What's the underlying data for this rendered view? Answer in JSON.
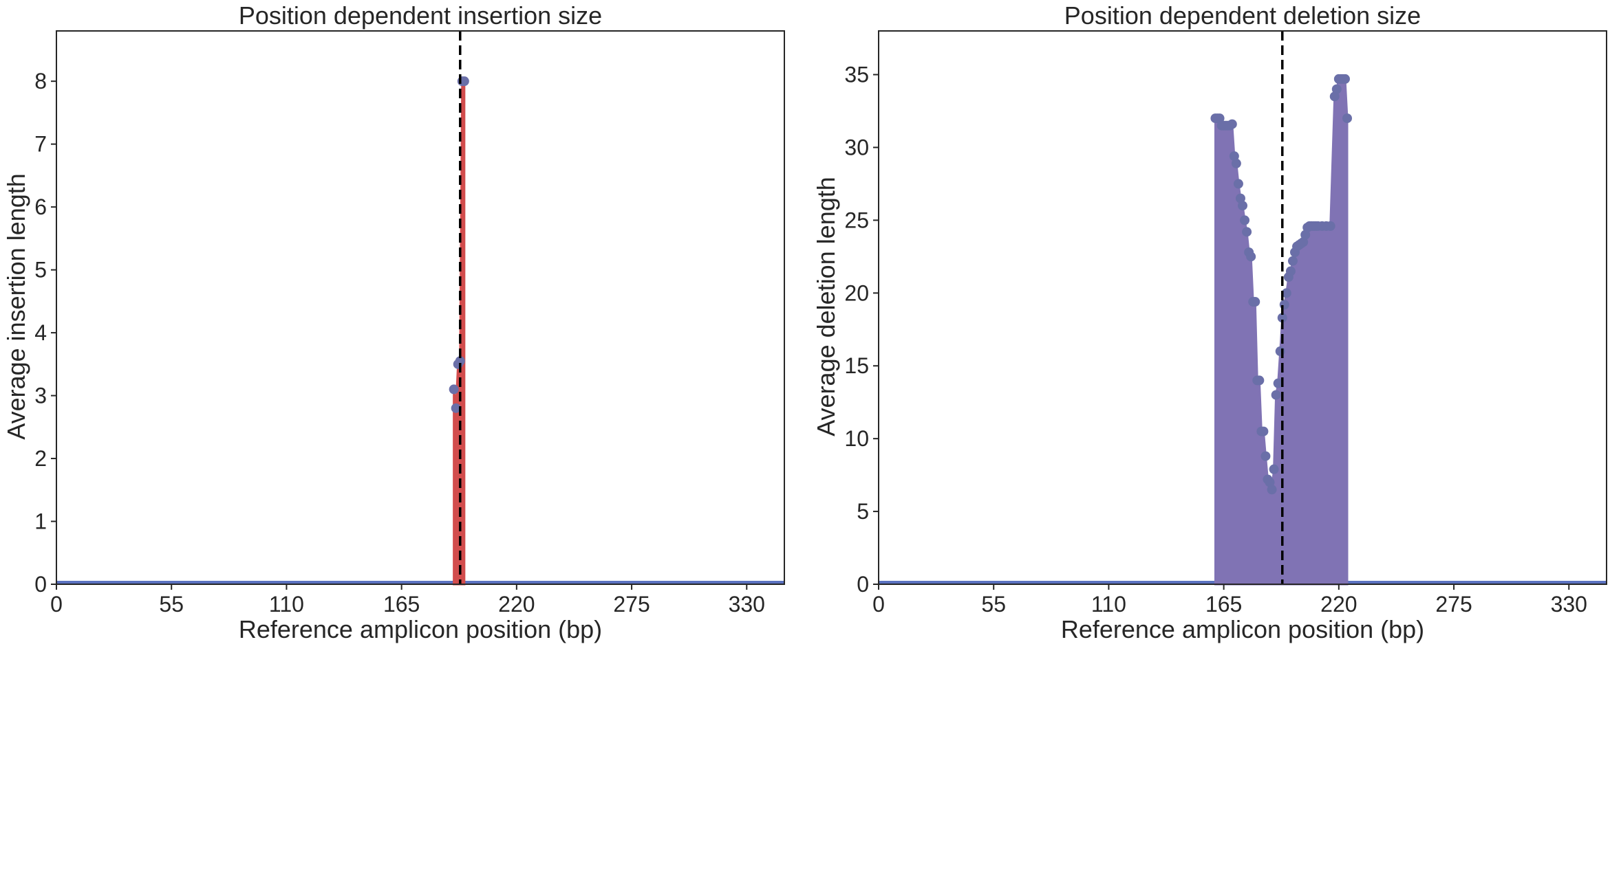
{
  "colors": {
    "insertion_fill": "#d24d4d",
    "deletion_fill": "#8073b4",
    "marker": "#6a6fa8",
    "baseline": "#5b72c0",
    "cut_line": "#000000",
    "axes": "#262626"
  },
  "chart_data": [
    {
      "type": "area",
      "title": "Position dependent insertion size",
      "xlabel": "Reference amplicon position (bp)",
      "ylabel": "Average insertion length",
      "xlim": [
        0,
        348
      ],
      "ylim": [
        0,
        8.8
      ],
      "xticks": [
        0,
        55,
        110,
        165,
        220,
        275,
        330
      ],
      "yticks": [
        0,
        1,
        2,
        3,
        4,
        5,
        6,
        7,
        8
      ],
      "cut_site": 193,
      "grid": false,
      "series": [
        {
          "points": [
            [
              190,
              0
            ],
            [
              190,
              3.1
            ],
            [
              191,
              2.8
            ],
            [
              192,
              3.5
            ],
            [
              193,
              3.55
            ],
            [
              194,
              8.0
            ],
            [
              195,
              8.0
            ],
            [
              195,
              0
            ]
          ]
        }
      ]
    },
    {
      "type": "area",
      "title": "Position dependent deletion size",
      "xlabel": "Reference amplicon position (bp)",
      "ylabel": "Average deletion length",
      "xlim": [
        0,
        348
      ],
      "ylim": [
        0,
        38
      ],
      "xticks": [
        0,
        55,
        110,
        165,
        220,
        275,
        330
      ],
      "yticks": [
        0,
        5,
        10,
        15,
        20,
        25,
        30,
        35
      ],
      "cut_site": 193,
      "grid": false,
      "series": [
        {
          "points": [
            [
              161,
              0
            ],
            [
              161,
              32.0
            ],
            [
              162,
              32.0
            ],
            [
              163,
              32.0
            ],
            [
              164,
              31.5
            ],
            [
              165,
              31.5
            ],
            [
              166,
              31.5
            ],
            [
              167,
              31.5
            ],
            [
              168,
              31.5
            ],
            [
              169,
              31.6
            ],
            [
              170,
              29.4
            ],
            [
              171,
              28.9
            ],
            [
              172,
              27.5
            ],
            [
              173,
              26.5
            ],
            [
              174,
              26.0
            ],
            [
              175,
              25.0
            ],
            [
              176,
              24.2
            ],
            [
              177,
              22.8
            ],
            [
              178,
              22.5
            ],
            [
              179,
              19.4
            ],
            [
              180,
              19.4
            ],
            [
              181,
              14.0
            ],
            [
              182,
              14.0
            ],
            [
              183,
              10.5
            ],
            [
              184,
              10.5
            ],
            [
              185,
              8.8
            ],
            [
              186,
              7.2
            ],
            [
              187,
              7.0
            ],
            [
              188,
              6.5
            ],
            [
              189,
              7.9
            ],
            [
              190,
              13.0
            ],
            [
              191,
              13.8
            ],
            [
              192,
              16.0
            ],
            [
              193,
              18.3
            ],
            [
              194,
              19.2
            ],
            [
              195,
              20.0
            ],
            [
              196,
              21.1
            ],
            [
              197,
              21.5
            ],
            [
              198,
              22.2
            ],
            [
              199,
              22.8
            ],
            [
              200,
              23.2
            ],
            [
              201,
              23.3
            ],
            [
              202,
              23.4
            ],
            [
              203,
              23.5
            ],
            [
              204,
              24.0
            ],
            [
              205,
              24.5
            ],
            [
              206,
              24.6
            ],
            [
              207,
              24.6
            ],
            [
              208,
              24.6
            ],
            [
              209,
              24.6
            ],
            [
              210,
              24.6
            ],
            [
              212,
              24.6
            ],
            [
              214,
              24.6
            ],
            [
              216,
              24.6
            ],
            [
              218,
              33.5
            ],
            [
              219,
              34.0
            ],
            [
              220,
              34.7
            ],
            [
              221,
              34.7
            ],
            [
              222,
              34.7
            ],
            [
              223,
              34.7
            ],
            [
              224,
              32.0
            ],
            [
              224,
              0
            ]
          ]
        }
      ]
    }
  ]
}
